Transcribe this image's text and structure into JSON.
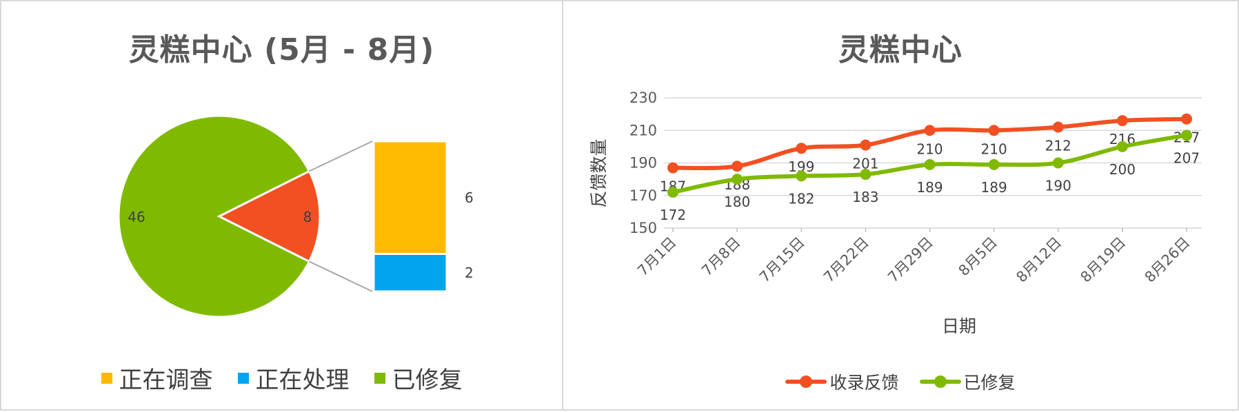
{
  "chart_data": [
    {
      "type": "pie",
      "title": "灵糕中心 (5月 - 8月)",
      "slices": [
        {
          "label": "已修复",
          "value": 46,
          "color": "#7fba00"
        },
        {
          "label": "",
          "value": 8,
          "color": "#f25022"
        }
      ],
      "breakdown": {
        "of_slice_value": 8,
        "bars": [
          {
            "label": "正在调查",
            "value": 6,
            "color": "#ffb900"
          },
          {
            "label": "正在处理",
            "value": 2,
            "color": "#00a4ef"
          }
        ]
      },
      "legend": [
        {
          "label": "正在调查",
          "color": "#ffb900"
        },
        {
          "label": "正在处理",
          "color": "#00a4ef"
        },
        {
          "label": "已修复",
          "color": "#7fba00"
        }
      ],
      "legend_position": "bottom"
    },
    {
      "type": "line",
      "title": "灵糕中心",
      "xlabel": "日期",
      "ylabel": "反馈数量",
      "categories": [
        "7月1日",
        "7月8日",
        "7月15日",
        "7月22日",
        "7月29日",
        "8月5日",
        "8月12日",
        "8月19日",
        "8月26日"
      ],
      "ylim": [
        150,
        230
      ],
      "yticks": [
        150,
        170,
        190,
        210,
        230
      ],
      "grid": true,
      "series": [
        {
          "name": "收录反馈",
          "color": "#f25022",
          "values": [
            187,
            188,
            199,
            201,
            210,
            210,
            212,
            216,
            217
          ]
        },
        {
          "name": "已修复",
          "color": "#7fba00",
          "values": [
            172,
            180,
            182,
            183,
            189,
            189,
            190,
            200,
            207
          ]
        }
      ],
      "legend_position": "bottom"
    }
  ]
}
